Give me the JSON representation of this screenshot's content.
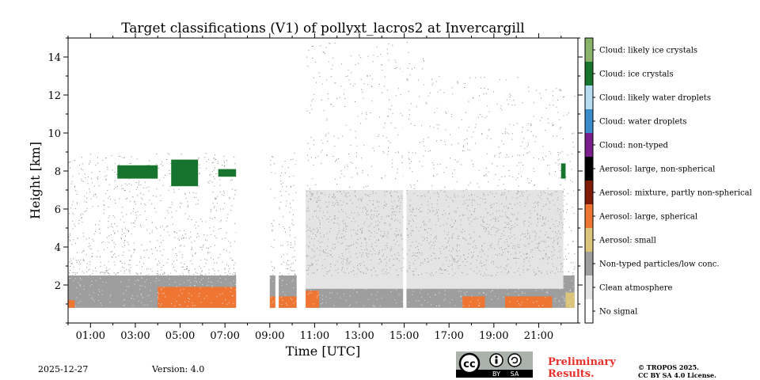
{
  "chart_data": {
    "type": "heatmap",
    "title": "Target classifications (V1) of pollyxt_lacros2 at Invercargill",
    "xlabel": "Time [UTC]",
    "ylabel": "Height [km]",
    "xlim": [
      0,
      22.75
    ],
    "ylim": [
      0,
      15
    ],
    "x_ticks": [
      {
        "value": 1,
        "label": "01:00"
      },
      {
        "value": 3,
        "label": "03:00"
      },
      {
        "value": 5,
        "label": "05:00"
      },
      {
        "value": 7,
        "label": "07:00"
      },
      {
        "value": 9,
        "label": "09:00"
      },
      {
        "value": 11,
        "label": "11:00"
      },
      {
        "value": 13,
        "label": "13:00"
      },
      {
        "value": 15,
        "label": "15:00"
      },
      {
        "value": 17,
        "label": "17:00"
      },
      {
        "value": 19,
        "label": "19:00"
      },
      {
        "value": 21,
        "label": "21:00"
      }
    ],
    "y_ticks": [
      {
        "value": 2,
        "label": "2"
      },
      {
        "value": 4,
        "label": "4"
      },
      {
        "value": 6,
        "label": "6"
      },
      {
        "value": 8,
        "label": "8"
      },
      {
        "value": 10,
        "label": "10"
      },
      {
        "value": 12,
        "label": "12"
      },
      {
        "value": 14,
        "label": "14"
      }
    ],
    "classes": [
      {
        "label": "No signal",
        "color": "#ffffff"
      },
      {
        "label": "Clean atmosphere",
        "color": "#e4e4e4"
      },
      {
        "label": "Non-typed particles/low conc.",
        "color": "#9e9e9e"
      },
      {
        "label": "Aerosol: small",
        "color": "#dcc47a"
      },
      {
        "label": "Aerosol: large, spherical",
        "color": "#ef7533"
      },
      {
        "label": "Aerosol: mixture, partly non-spherical",
        "color": "#7e1c08"
      },
      {
        "label": "Aerosol: large, non-spherical",
        "color": "#000000"
      },
      {
        "label": "Cloud: non-typed",
        "color": "#7a1e8c"
      },
      {
        "label": "Cloud: water droplets",
        "color": "#3a8bc9"
      },
      {
        "label": "Cloud: likely water droplets",
        "color": "#b8dcf2"
      },
      {
        "label": "Cloud: ice crystals",
        "color": "#17742f"
      },
      {
        "label": "Cloud: likely ice crystals",
        "color": "#8ab36a"
      }
    ],
    "regions": [
      {
        "class": "Non-typed particles/low conc.",
        "t_start": 0,
        "t_end": 22.6,
        "h_bottom": 0.8,
        "h_top": 2.5
      },
      {
        "class": "Clean atmosphere",
        "t_start": 10.5,
        "t_end": 22.1,
        "h_bottom": 1.8,
        "h_top": 7.0
      },
      {
        "class": "Aerosol: large, spherical",
        "t_start": 0,
        "t_end": 0.3,
        "h_bottom": 0.8,
        "h_top": 1.2
      },
      {
        "class": "Aerosol: large, spherical",
        "t_start": 4.0,
        "t_end": 7.5,
        "h_bottom": 0.8,
        "h_top": 1.9
      },
      {
        "class": "Aerosol: large, spherical",
        "t_start": 9.0,
        "t_end": 10.2,
        "h_bottom": 0.8,
        "h_top": 1.4
      },
      {
        "class": "Aerosol: large, spherical",
        "t_start": 10.6,
        "t_end": 11.2,
        "h_bottom": 0.8,
        "h_top": 1.7
      },
      {
        "class": "Aerosol: large, spherical",
        "t_start": 17.6,
        "t_end": 18.6,
        "h_bottom": 0.8,
        "h_top": 1.4
      },
      {
        "class": "Aerosol: large, spherical",
        "t_start": 19.5,
        "t_end": 21.6,
        "h_bottom": 0.8,
        "h_top": 1.4
      },
      {
        "class": "Aerosol: small",
        "t_start": 22.2,
        "t_end": 22.6,
        "h_bottom": 0.8,
        "h_top": 1.6
      },
      {
        "class": "Cloud: ice crystals",
        "t_start": 2.2,
        "t_end": 4.0,
        "h_bottom": 7.6,
        "h_top": 8.3
      },
      {
        "class": "Cloud: ice crystals",
        "t_start": 4.6,
        "t_end": 5.8,
        "h_bottom": 7.2,
        "h_top": 8.6
      },
      {
        "class": "Cloud: ice crystals",
        "t_start": 6.7,
        "t_end": 7.5,
        "h_bottom": 7.7,
        "h_top": 8.1
      },
      {
        "class": "Cloud: ice crystals",
        "t_start": 22.0,
        "t_end": 22.2,
        "h_bottom": 7.6,
        "h_top": 8.4
      }
    ],
    "no_signal_gaps": [
      {
        "t_start": 7.5,
        "t_end": 9.0
      },
      {
        "t_start": 9.25,
        "t_end": 9.4
      },
      {
        "t_start": 10.2,
        "t_end": 10.6
      },
      {
        "t_start": 14.95,
        "t_end": 15.1
      }
    ]
  },
  "footer": {
    "date": "2025-12-27",
    "version": "Version: 4.0",
    "preliminary_line1": "Preliminary",
    "preliminary_line2": "Results.",
    "copyright_line1": "© TROPOS 2025.",
    "copyright_line2": "CC BY SA 4.0 License.",
    "license_badge": {
      "cc": "cc",
      "by": "BY",
      "sa": "SA"
    }
  }
}
